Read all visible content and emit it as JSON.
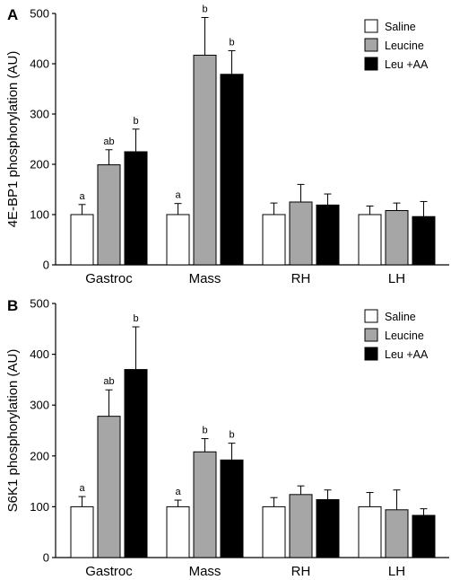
{
  "colors": {
    "Saline": "#ffffff",
    "Leucine": "#a6a6a6",
    "Leu +AA": "#000000",
    "axis": "#000000"
  },
  "chart_data": [
    {
      "panel": "A",
      "type": "bar",
      "title": "",
      "xlabel": "",
      "ylabel": "4E-BP1 phosphorylation (AU)",
      "ylim": [
        0,
        500
      ],
      "yticks": [
        0,
        100,
        200,
        300,
        400,
        500
      ],
      "grid": false,
      "legend_position": "top-right",
      "categories": [
        "Gastroc",
        "Mass",
        "RH",
        "LH"
      ],
      "series": [
        {
          "name": "Saline",
          "values": [
            100,
            100,
            100,
            100
          ],
          "errors": [
            20,
            22,
            23,
            17
          ],
          "sig": [
            "a",
            "a",
            "",
            ""
          ]
        },
        {
          "name": "Leucine",
          "values": [
            199,
            417,
            125,
            108
          ],
          "errors": [
            30,
            75,
            35,
            15
          ],
          "sig": [
            "ab",
            "b",
            "",
            ""
          ]
        },
        {
          "name": "Leu +AA",
          "values": [
            225,
            379,
            119,
            96
          ],
          "errors": [
            45,
            47,
            22,
            30
          ],
          "sig": [
            "b",
            "b",
            "",
            ""
          ]
        }
      ]
    },
    {
      "panel": "B",
      "type": "bar",
      "title": "",
      "xlabel": "",
      "ylabel": "S6K1 phosphorylation (AU)",
      "ylim": [
        0,
        500
      ],
      "yticks": [
        0,
        100,
        200,
        300,
        400,
        500
      ],
      "grid": false,
      "legend_position": "top-right",
      "categories": [
        "Gastroc",
        "Mass",
        "RH",
        "LH"
      ],
      "series": [
        {
          "name": "Saline",
          "values": [
            100,
            100,
            100,
            100
          ],
          "errors": [
            20,
            13,
            18,
            28
          ],
          "sig": [
            "a",
            "a",
            "",
            ""
          ]
        },
        {
          "name": "Leucine",
          "values": [
            278,
            208,
            124,
            94
          ],
          "errors": [
            52,
            26,
            17,
            39
          ],
          "sig": [
            "ab",
            "b",
            "",
            ""
          ]
        },
        {
          "name": "Leu +AA",
          "values": [
            370,
            192,
            114,
            83
          ],
          "errors": [
            84,
            33,
            19,
            13
          ],
          "sig": [
            "b",
            "b",
            "",
            ""
          ]
        }
      ]
    }
  ]
}
